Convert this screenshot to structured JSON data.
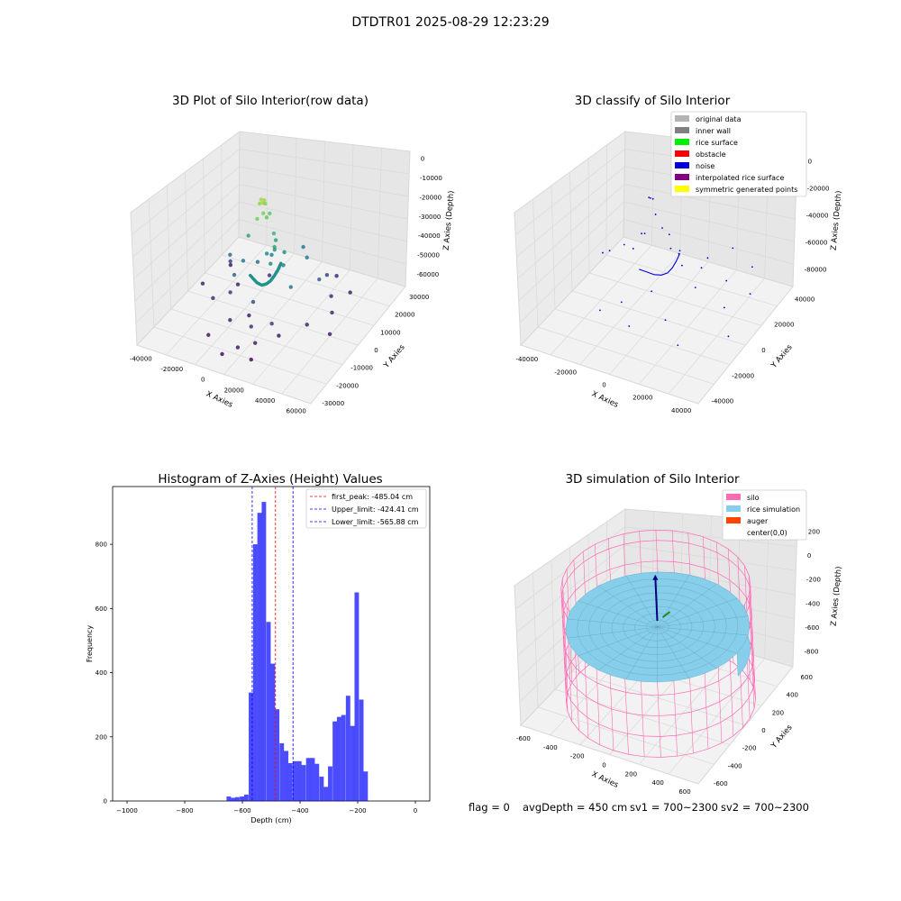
{
  "suptitle": "DTDTR01 2025-08-29 12:23:29",
  "status": {
    "flag": "flag = 0",
    "avg_depth": "avgDepth = 450 cm",
    "sv1": "sv1 = 700~2300",
    "sv2": "sv2 = 700~2300"
  },
  "chart_data": [
    {
      "type": "scatter",
      "title": "3D Plot of Silo Interior(row data)",
      "xlabel": "X Axies",
      "ylabel": "Y Axies",
      "zlabel": "Z Axies (Depth)",
      "xticks": [
        "-40000",
        "-20000",
        "0",
        "20000",
        "40000",
        "60000"
      ],
      "yticks": [
        "-30000",
        "-20000",
        "-10000",
        "0",
        "10000",
        "20000",
        "30000"
      ],
      "zticks": [
        "0",
        "-10000",
        "-20000",
        "-30000",
        "-40000",
        "-50000",
        "-60000"
      ],
      "xlim": [
        -45000,
        62000
      ],
      "ylim": [
        -32000,
        35000
      ],
      "zlim": [
        -70000,
        5000
      ],
      "colormap": "viridis (colored by Z value)",
      "points": [
        [
          2000,
          3000,
          -5000
        ],
        [
          3000,
          4000,
          -6000
        ],
        [
          1500,
          2500,
          -7000
        ],
        [
          4000,
          2000,
          -5500
        ],
        [
          2500,
          5000,
          -9000
        ],
        [
          5000,
          1000,
          -10000
        ],
        [
          3000,
          -1000,
          -12000
        ],
        [
          6000,
          2000,
          -13000
        ],
        [
          4000,
          6000,
          -15000
        ],
        [
          9000,
          3000,
          -22000
        ],
        [
          -6000,
          2000,
          -27000
        ],
        [
          12000,
          0,
          -26000
        ],
        [
          8000,
          5000,
          -28000
        ],
        [
          10000,
          2000,
          -30000
        ],
        [
          14000,
          4000,
          -32000
        ],
        [
          11000,
          -2000,
          -34000
        ],
        [
          16000,
          1000,
          -36000
        ],
        [
          6000,
          4000,
          -36000
        ],
        [
          4000,
          3000,
          -35000
        ],
        [
          -8000,
          0,
          -40000
        ],
        [
          -20000,
          4000,
          -44000
        ],
        [
          -4000,
          5000,
          -44000
        ],
        [
          -10000,
          -4000,
          -45000
        ],
        [
          22000,
          10000,
          -38000
        ],
        [
          14000,
          16000,
          -40000
        ],
        [
          25000,
          -4000,
          -41000
        ],
        [
          30000,
          9000,
          -47000
        ],
        [
          5000,
          -8000,
          -52000
        ],
        [
          20000,
          -12000,
          -56000
        ],
        [
          26000,
          18000,
          -54000
        ],
        [
          10000,
          -15000,
          -58000
        ],
        [
          -14000,
          -3000,
          -57000
        ],
        [
          -26000,
          10000,
          -55000
        ],
        [
          -22000,
          -6000,
          -60000
        ],
        [
          -6000,
          -12000,
          -62000
        ],
        [
          0,
          -6000,
          -63000
        ],
        [
          8000,
          -22000,
          -64000
        ],
        [
          15000,
          -18000,
          -63000
        ],
        [
          22000,
          -10000,
          -64000
        ],
        [
          32000,
          -2000,
          -62000
        ],
        [
          40000,
          6000,
          -60000
        ],
        [
          34000,
          12000,
          -58000
        ],
        [
          -18000,
          6000,
          -62000
        ],
        [
          -30000,
          14000,
          -62000
        ],
        [
          -12000,
          -20000,
          -65000
        ],
        [
          2000,
          -26000,
          -66000
        ],
        [
          18000,
          -24000,
          -66000
        ],
        [
          -4000,
          12000,
          -58000
        ],
        [
          46000,
          -2000,
          -63000
        ],
        [
          38000,
          20000,
          -62000
        ],
        [
          26000,
          24000,
          -60000
        ],
        [
          -34000,
          0,
          -61000
        ]
      ],
      "curve": [
        [
          -8000,
          4000,
          -52000
        ],
        [
          -4000,
          2000,
          -51000
        ],
        [
          0,
          0,
          -50000
        ],
        [
          5000,
          -2000,
          -48000
        ],
        [
          9000,
          -3000,
          -45000
        ],
        [
          12000,
          -3500,
          -42000
        ],
        [
          14000,
          -3000,
          -39000
        ],
        [
          15500,
          -2000,
          -36000
        ],
        [
          16500,
          -1000,
          -33000
        ]
      ]
    },
    {
      "type": "scatter",
      "title": "3D classify of Silo Interior",
      "xlabel": "X Axies",
      "ylabel": "Y Axies",
      "zlabel": "Z Axies (Depth)",
      "xticks": [
        "-40000",
        "-20000",
        "0",
        "20000",
        "40000"
      ],
      "yticks": [
        "-40000",
        "-20000",
        "0",
        "20000",
        "40000"
      ],
      "zticks": [
        "0",
        "-20000",
        "-40000",
        "-60000",
        "-80000"
      ],
      "xlim": [
        -45000,
        50000
      ],
      "ylim": [
        -45000,
        45000
      ],
      "zlim": [
        -85000,
        5000
      ],
      "legend": [
        {
          "label": "original data",
          "color": "#b3b3b3"
        },
        {
          "label": "inner wall",
          "color": "#808080"
        },
        {
          "label": "rice surface",
          "color": "#00ee00"
        },
        {
          "label": "obstacle",
          "color": "#ff0000"
        },
        {
          "label": "noise",
          "color": "#0000dd"
        },
        {
          "label": "interpolated rice surface",
          "color": "#800080"
        },
        {
          "label": "symmetric generated points",
          "color": "#ffff00"
        }
      ],
      "noise_points": [
        [
          0,
          0,
          -3000
        ],
        [
          1000,
          500,
          -3500
        ],
        [
          -1500,
          1000,
          -4000
        ],
        [
          3000,
          -1000,
          -12000
        ],
        [
          5000,
          1000,
          -22000
        ],
        [
          8000,
          2000,
          -26000
        ],
        [
          -6000,
          3000,
          -32000
        ],
        [
          11000,
          -2000,
          -31000
        ],
        [
          14000,
          0,
          -35000
        ],
        [
          12000,
          4000,
          -37000
        ],
        [
          18000,
          -4000,
          -38000
        ],
        [
          -12000,
          2000,
          -44000
        ],
        [
          22000,
          6000,
          -46000
        ],
        [
          26000,
          -6000,
          -48000
        ],
        [
          -22000,
          10000,
          -52000
        ],
        [
          6000,
          -12000,
          -54000
        ],
        [
          -30000,
          4000,
          -56000
        ],
        [
          30000,
          14000,
          -58000
        ],
        [
          18000,
          -20000,
          -62000
        ],
        [
          -8000,
          -16000,
          -64000
        ],
        [
          36000,
          2000,
          -64000
        ],
        [
          40000,
          18000,
          -66000
        ],
        [
          2000,
          -26000,
          -68000
        ],
        [
          -16000,
          -22000,
          -68000
        ],
        [
          28000,
          -26000,
          -70000
        ],
        [
          -34000,
          16000,
          -66000
        ],
        [
          44000,
          -8000,
          -72000
        ],
        [
          10000,
          30000,
          -64000
        ],
        [
          -24000,
          28000,
          -60000
        ],
        [
          34000,
          30000,
          -60000
        ],
        [
          20000,
          36000,
          -58000
        ]
      ],
      "curve": [
        [
          -10000,
          3000,
          -58000
        ],
        [
          -5000,
          2000,
          -57000
        ],
        [
          0,
          0,
          -55000
        ],
        [
          5000,
          -1500,
          -52000
        ],
        [
          9000,
          -2500,
          -48000
        ],
        [
          12000,
          -3000,
          -43000
        ],
        [
          14000,
          -2500,
          -38000
        ],
        [
          15500,
          -1500,
          -33000
        ]
      ]
    },
    {
      "type": "bar",
      "title": "Histogram of Z-Axies (Height) Values",
      "xlabel": "Depth (cm)",
      "ylabel": "Frequency",
      "xlim": [
        -1050,
        50
      ],
      "ylim": [
        0,
        980
      ],
      "xticks": [
        -1000,
        -800,
        -600,
        -400,
        -200,
        0
      ],
      "yticks": [
        0,
        200,
        400,
        600,
        800
      ],
      "bar_color": "#0000ff",
      "bin_width": 15.3,
      "bins": [
        [
          -655,
          14
        ],
        [
          -640,
          10
        ],
        [
          -625,
          12
        ],
        [
          -609,
          14
        ],
        [
          -594,
          20
        ],
        [
          -578,
          338
        ],
        [
          -563,
          800
        ],
        [
          -548,
          898
        ],
        [
          -533,
          932
        ],
        [
          -517,
          558
        ],
        [
          -502,
          428
        ],
        [
          -487,
          286
        ],
        [
          -471,
          180
        ],
        [
          -456,
          156
        ],
        [
          -441,
          118
        ],
        [
          -425,
          124
        ],
        [
          -410,
          124
        ],
        [
          -395,
          112
        ],
        [
          -379,
          134
        ],
        [
          -364,
          134
        ],
        [
          -349,
          116
        ],
        [
          -333,
          76
        ],
        [
          -318,
          44
        ],
        [
          -303,
          108
        ],
        [
          -287,
          248
        ],
        [
          -272,
          262
        ],
        [
          -257,
          268
        ],
        [
          -241,
          328
        ],
        [
          -226,
          234
        ],
        [
          -211,
          650
        ],
        [
          -195,
          316
        ],
        [
          -180,
          92
        ]
      ],
      "vlines": [
        {
          "label": "first_peak: -485.04 cm",
          "x": -485.04,
          "color": "#ff0000"
        },
        {
          "label": "Upper_limit: -424.41 cm",
          "x": -424.41,
          "color": "#0000ff"
        },
        {
          "label": "Lower_limit: -565.88 cm",
          "x": -565.88,
          "color": "#0000ff"
        }
      ]
    },
    {
      "type": "surface",
      "title": "3D simulation of Silo Interior",
      "xlabel": "X Axies",
      "ylabel": "Y Axies",
      "zlabel": "Z Axies (Depth)",
      "xticks": [
        "-600",
        "-400",
        "-200",
        "0",
        "200",
        "400",
        "600"
      ],
      "yticks": [
        "-600",
        "-400",
        "-200",
        "0",
        "200",
        "400",
        "600"
      ],
      "zticks": [
        "200",
        "0",
        "-200",
        "-400",
        "-600",
        "-800"
      ],
      "xlim": [
        -650,
        650
      ],
      "ylim": [
        -650,
        650
      ],
      "zlim": [
        -1000,
        350
      ],
      "silo_radius": 600,
      "silo_top": 100,
      "silo_bottom": -1000,
      "rice_level": -450,
      "legend": [
        {
          "label": "silo",
          "color": "#ff69b4"
        },
        {
          "label": "rice simulation",
          "color": "#87ceeb"
        },
        {
          "label": "auger",
          "color": "#ff4500"
        },
        {
          "label": "center(0,0)",
          "color": ""
        }
      ]
    }
  ]
}
